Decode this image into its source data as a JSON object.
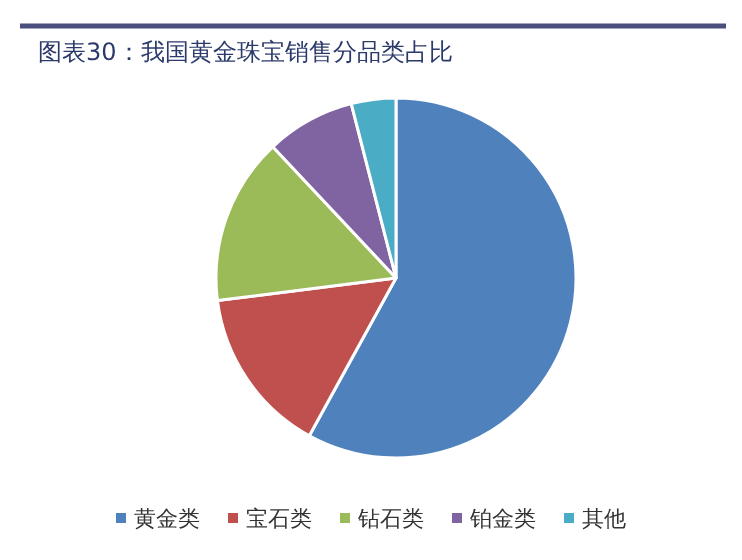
{
  "chart_data": {
    "type": "pie",
    "title": "图表30：我国黄金珠宝销售分品类占比",
    "categories": [
      "黄金类",
      "宝石类",
      "钻石类",
      "铂金类",
      "其他"
    ],
    "values": [
      58,
      15,
      15,
      8,
      4
    ],
    "colors": [
      "#4f81bd",
      "#c0504d",
      "#9bbb59",
      "#8064a2",
      "#4bacc6"
    ],
    "legend": "bottom"
  }
}
